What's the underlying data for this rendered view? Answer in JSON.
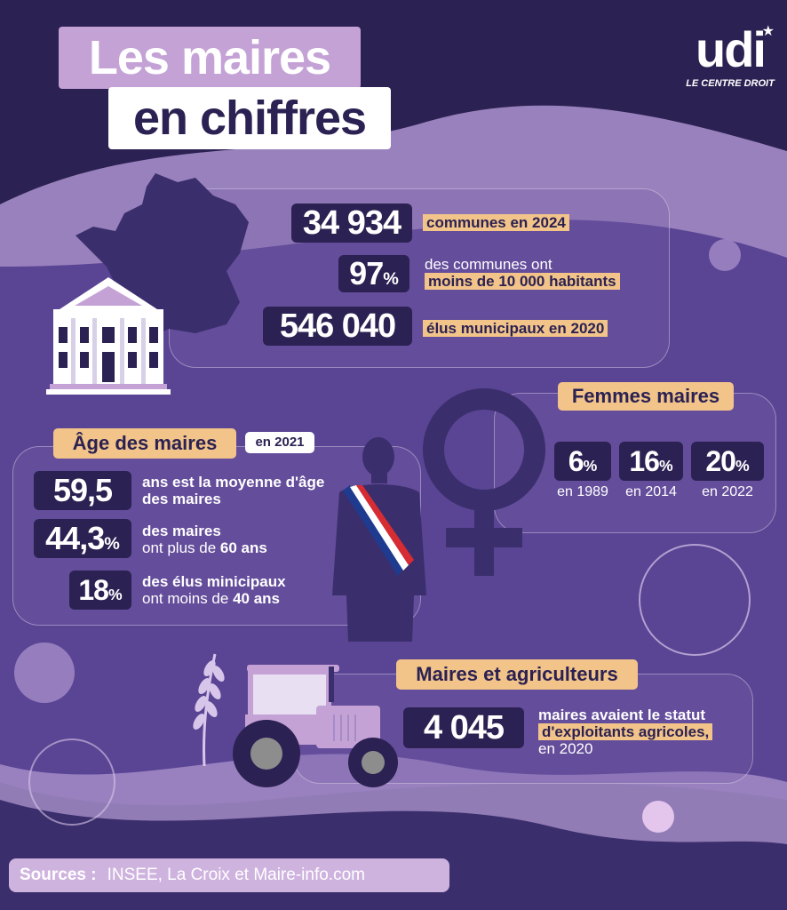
{
  "header": {
    "title_line1": "Les maires",
    "title_line2": "en chiffres"
  },
  "logo": {
    "name": "udi",
    "tagline": "LE CENTRE DROIT",
    "icon": "star-icon"
  },
  "communes": {
    "stat1_value": "34 934",
    "stat1_label": "communes en 2024",
    "stat2_value": "97",
    "stat2_unit": "%",
    "stat2_label_line1": "des communes ont",
    "stat2_label_line2": "moins de 10 000 habitants",
    "stat3_value": "546 040",
    "stat3_label": "élus municipaux en 2020",
    "icons": [
      "france-map-icon",
      "town-hall-icon"
    ]
  },
  "femmes": {
    "title": "Femmes maires",
    "items": [
      {
        "value": "6",
        "unit": "%",
        "year": "en 1989"
      },
      {
        "value": "16",
        "unit": "%",
        "year": "en 2014"
      },
      {
        "value": "20",
        "unit": "%",
        "year": "en 2022"
      }
    ],
    "icon": "female-symbol-icon"
  },
  "age": {
    "title": "Âge des maires",
    "year_tag": "en 2021",
    "stat1_value": "59,5",
    "stat1_label_line1": "ans est la moyenne d'âge",
    "stat1_label_line2": "des maires",
    "stat2_value": "44,3",
    "stat2_unit": "%",
    "stat2_label_line1": "des maires",
    "stat2_label_line2_pre": "ont plus de ",
    "stat2_label_line2_bold": "60 ans",
    "stat3_value": "18",
    "stat3_unit": "%",
    "stat3_label_line1": "des élus minicipaux",
    "stat3_label_line2_pre": "ont moins de ",
    "stat3_label_line2_bold": "40 ans",
    "icon": "mayor-silhouette-icon"
  },
  "agri": {
    "title": "Maires et agriculteurs",
    "value": "4 045",
    "label_line1": "maires avaient le statut",
    "label_line2": "d'exploitants agricoles,",
    "label_line3": "en 2020",
    "icons": [
      "wheat-icon",
      "tractor-icon"
    ]
  },
  "sources": {
    "label": "Sources :",
    "text": "INSEE, La Croix et Maire-info.com"
  },
  "colors": {
    "background": "#2b2152",
    "wave": "#a48cc8",
    "accent": "#f2c48a",
    "pink": "#c4a2d6"
  }
}
